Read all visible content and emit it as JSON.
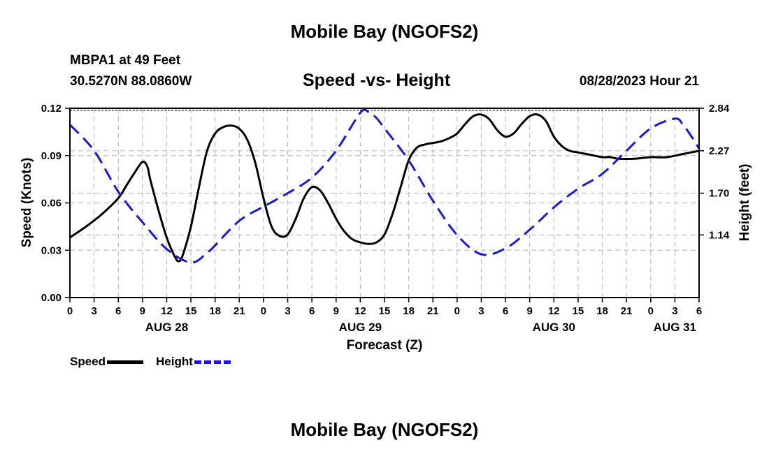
{
  "page": {
    "title": "Mobile Bay (NGOFS2)",
    "bottom_title": "Mobile Bay (NGOFS2)",
    "station_name": "MBPA1 at 49 Feet",
    "station_coords": "30.5270N  88.0860W",
    "subtitle": "Speed -vs- Height",
    "datetime": "08/28/2023 Hour 21"
  },
  "legend": {
    "speed_label": "Speed",
    "height_label": "Height"
  },
  "colors": {
    "speed": "#000000",
    "height": "#1a1acc",
    "grid": "#bfbfbf"
  },
  "chart_data": {
    "type": "line",
    "xlabel": "Forecast (Z)",
    "ylabel_left": "Speed (Knots)",
    "ylabel_right": "Height (feet)",
    "x_unit": "hours from AUG 28 00Z",
    "xlim": [
      0,
      78
    ],
    "x_ticks": [
      0,
      3,
      6,
      9,
      12,
      15,
      18,
      21,
      24,
      27,
      30,
      33,
      36,
      39,
      42,
      45,
      48,
      51,
      54,
      57,
      60,
      63,
      66,
      69,
      72,
      75,
      78
    ],
    "x_tick_labels": [
      "0",
      "3",
      "6",
      "9",
      "12",
      "15",
      "18",
      "21",
      "0",
      "3",
      "6",
      "9",
      "12",
      "15",
      "18",
      "21",
      "0",
      "3",
      "6",
      "9",
      "12",
      "15",
      "18",
      "21",
      "0",
      "3",
      "6"
    ],
    "day_labels": [
      {
        "x": 12,
        "label": "AUG 28"
      },
      {
        "x": 36,
        "label": "AUG 29"
      },
      {
        "x": 60,
        "label": "AUG 30"
      },
      {
        "x": 75,
        "label": "AUG 31"
      }
    ],
    "ylim_left": [
      0,
      0.12
    ],
    "y_ticks_left": [
      "0.00",
      "0.03",
      "0.06",
      "0.09",
      "0.12"
    ],
    "ylim_right": [
      0.3,
      2.84
    ],
    "y_ticks_right": [
      "1.14",
      "1.70",
      "2.27",
      "2.84"
    ],
    "grid": true,
    "series": [
      {
        "name": "Speed",
        "axis": "left",
        "style": "solid",
        "x": [
          0,
          2,
          4,
          6,
          7,
          8,
          9,
          9.6,
          10,
          11,
          12,
          13,
          13.5,
          14,
          15,
          16,
          17,
          18,
          19,
          20,
          21,
          22,
          23,
          24,
          25,
          26,
          27,
          28,
          29,
          30,
          31,
          32,
          33,
          34,
          35,
          36,
          37,
          38,
          39,
          40,
          41,
          42,
          43,
          44,
          45,
          46,
          47,
          48,
          49,
          50,
          51,
          52,
          53,
          54,
          55,
          56,
          57,
          58,
          59,
          60,
          61,
          62,
          63,
          64,
          65,
          66,
          67,
          68,
          70,
          72,
          74,
          76,
          78
        ],
        "values": [
          0.038,
          0.045,
          0.053,
          0.063,
          0.071,
          0.079,
          0.086,
          0.083,
          0.074,
          0.055,
          0.038,
          0.026,
          0.023,
          0.027,
          0.045,
          0.07,
          0.093,
          0.104,
          0.108,
          0.109,
          0.107,
          0.1,
          0.085,
          0.063,
          0.045,
          0.039,
          0.04,
          0.05,
          0.063,
          0.07,
          0.068,
          0.06,
          0.05,
          0.042,
          0.037,
          0.035,
          0.034,
          0.035,
          0.04,
          0.053,
          0.07,
          0.087,
          0.095,
          0.097,
          0.098,
          0.099,
          0.101,
          0.104,
          0.11,
          0.115,
          0.116,
          0.113,
          0.106,
          0.102,
          0.104,
          0.11,
          0.115,
          0.116,
          0.112,
          0.102,
          0.096,
          0.093,
          0.092,
          0.091,
          0.09,
          0.089,
          0.089,
          0.088,
          0.088,
          0.089,
          0.089,
          0.091,
          0.093
        ]
      },
      {
        "name": "Height",
        "axis": "right",
        "style": "dashed",
        "x": [
          0,
          3,
          6,
          9,
          12,
          15,
          17,
          18,
          21,
          24,
          27,
          30,
          33,
          36,
          37,
          38,
          39,
          42,
          45,
          48,
          51,
          54,
          57,
          60,
          63,
          66,
          69,
          72,
          75,
          76,
          77,
          78
        ],
        "values": [
          2.62,
          2.27,
          1.72,
          1.31,
          0.95,
          0.77,
          0.9,
          1.0,
          1.33,
          1.52,
          1.7,
          1.91,
          2.27,
          2.78,
          2.79,
          2.71,
          2.57,
          2.14,
          1.6,
          1.14,
          0.88,
          0.96,
          1.21,
          1.51,
          1.76,
          1.96,
          2.27,
          2.57,
          2.7,
          2.62,
          2.47,
          2.3
        ]
      }
    ]
  }
}
